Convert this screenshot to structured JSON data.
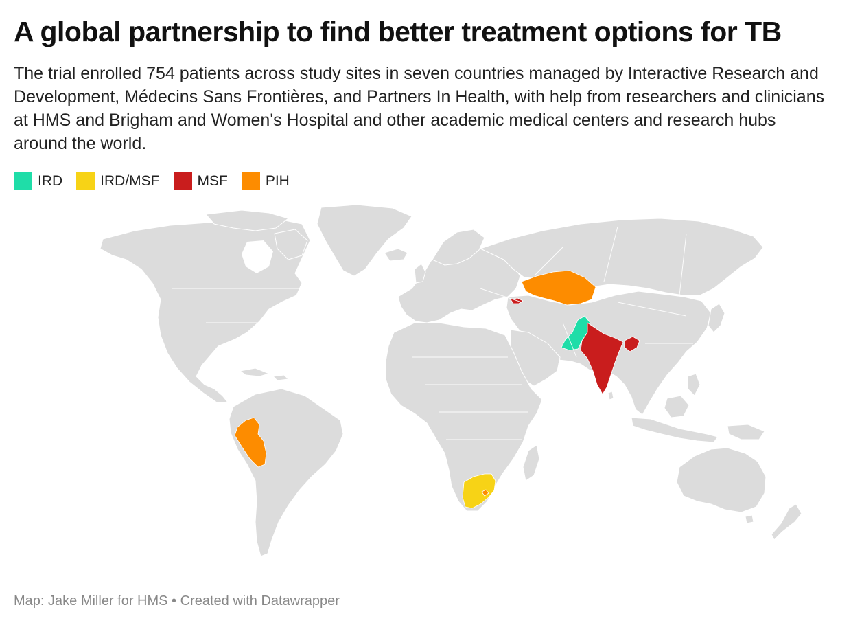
{
  "header": {
    "title": "A global partnership to find better treatment options for TB",
    "subtitle": "The trial enrolled 754 patients across study sites in seven countries managed by Interactive Research and Development, Médecins Sans Frontières, and Partners In Health, with help from researchers and clinicians at HMS and Brigham and Women's Hospital and other academic medical centers and research hubs around the world."
  },
  "legend": [
    {
      "label": "IRD",
      "color": "#1fdda8"
    },
    {
      "label": "IRD/MSF",
      "color": "#f7d316"
    },
    {
      "label": "MSF",
      "color": "#c91d1d"
    },
    {
      "label": "PIH",
      "color": "#fd8c00"
    }
  ],
  "map": {
    "base_color": "#dcdcdc",
    "highlighted_countries": [
      {
        "country": "Pakistan",
        "group": "IRD",
        "color": "#1fdda8"
      },
      {
        "country": "South Africa",
        "group": "IRD/MSF",
        "color": "#f7d316"
      },
      {
        "country": "India",
        "group": "MSF",
        "color": "#c91d1d"
      },
      {
        "country": "Georgia",
        "group": "MSF",
        "color": "#c91d1d"
      },
      {
        "country": "Kazakhstan",
        "group": "PIH",
        "color": "#fd8c00"
      },
      {
        "country": "Peru",
        "group": "PIH",
        "color": "#fd8c00"
      },
      {
        "country": "Lesotho",
        "group": "PIH",
        "color": "#fd8c00"
      }
    ]
  },
  "footer": {
    "credit": "Map: Jake Miller for HMS • Created with Datawrapper"
  }
}
